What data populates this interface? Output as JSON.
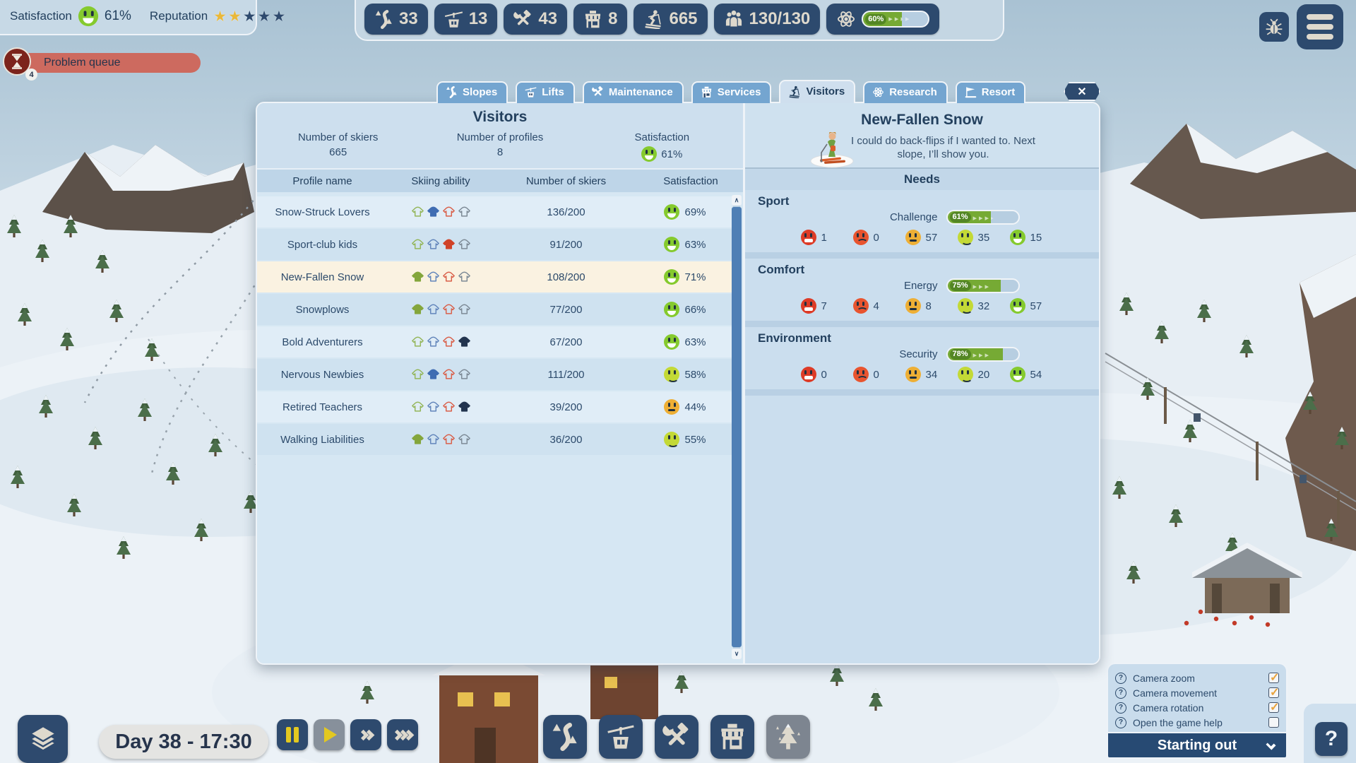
{
  "top_bar": {
    "satisfaction_label": "Satisfaction",
    "satisfaction_value": "61%",
    "satisfaction_mood": "happy",
    "reputation_label": "Reputation",
    "stars": [
      "filled",
      "filled",
      "empty",
      "empty",
      "empty"
    ],
    "resources": [
      {
        "name": "slopes",
        "value": "33"
      },
      {
        "name": "lifts",
        "value": "13"
      },
      {
        "name": "maintenance",
        "value": "43"
      },
      {
        "name": "services",
        "value": "8"
      },
      {
        "name": "skiers",
        "value": "665"
      },
      {
        "name": "guests",
        "value": "130/130"
      },
      {
        "name": "research",
        "value": "60%"
      }
    ]
  },
  "problem_queue": {
    "label": "Problem queue",
    "badge": "4"
  },
  "tabs": [
    {
      "label": "Slopes",
      "active": "false"
    },
    {
      "label": "Lifts",
      "active": "false"
    },
    {
      "label": "Maintenance",
      "active": "false"
    },
    {
      "label": "Services",
      "active": "false"
    },
    {
      "label": "Visitors",
      "active": "true"
    },
    {
      "label": "Research",
      "active": "false"
    },
    {
      "label": "Resort",
      "active": "false"
    }
  ],
  "window": {
    "close_glyph": "✕"
  },
  "visitors": {
    "title": "Visitors",
    "stats": [
      {
        "label": "Number of skiers",
        "value": "665"
      },
      {
        "label": "Number of profiles",
        "value": "8"
      },
      {
        "label": "Satisfaction",
        "value": "61%",
        "mood": "happy"
      }
    ],
    "table": {
      "headers": [
        "Profile name",
        "Skiing ability",
        "Number of skiers",
        "Satisfaction"
      ],
      "rows": [
        {
          "name": "Snow-Struck Lovers",
          "ability": "1",
          "skiers": "136/200",
          "satisfaction": "69%",
          "mood": "happy",
          "selected": "false"
        },
        {
          "name": "Sport-club kids",
          "ability": "2",
          "skiers": "91/200",
          "satisfaction": "63%",
          "mood": "happy",
          "selected": "false"
        },
        {
          "name": "New-Fallen Snow",
          "ability": "0",
          "skiers": "108/200",
          "satisfaction": "71%",
          "mood": "happy",
          "selected": "true"
        },
        {
          "name": "Snowplows",
          "ability": "0",
          "skiers": "77/200",
          "satisfaction": "66%",
          "mood": "happy",
          "selected": "false"
        },
        {
          "name": "Bold Adventurers",
          "ability": "3",
          "skiers": "67/200",
          "satisfaction": "63%",
          "mood": "happy",
          "selected": "false"
        },
        {
          "name": "Nervous Newbies",
          "ability": "1",
          "skiers": "111/200",
          "satisfaction": "58%",
          "mood": "ok",
          "selected": "false"
        },
        {
          "name": "Retired Teachers",
          "ability": "3",
          "skiers": "39/200",
          "satisfaction": "44%",
          "mood": "neutral",
          "selected": "false"
        },
        {
          "name": "Walking Liabilities",
          "ability": "0",
          "skiers": "36/200",
          "satisfaction": "55%",
          "mood": "ok",
          "selected": "false"
        }
      ]
    }
  },
  "detail": {
    "title": "New-Fallen Snow",
    "quote": "I could do back-flips if I wanted to. Next slope, I’ll show you.",
    "needs_title": "Needs",
    "sections": [
      {
        "title": "Sport",
        "metric": "Challenge",
        "progress": "61%",
        "counts": [
          {
            "mood": "angry",
            "value": "1"
          },
          {
            "mood": "sad",
            "value": "0"
          },
          {
            "mood": "neutral",
            "value": "57"
          },
          {
            "mood": "ok",
            "value": "35"
          },
          {
            "mood": "happy",
            "value": "15"
          }
        ]
      },
      {
        "title": "Comfort",
        "metric": "Energy",
        "progress": "75%",
        "counts": [
          {
            "mood": "angry",
            "value": "7"
          },
          {
            "mood": "sad",
            "value": "4"
          },
          {
            "mood": "neutral",
            "value": "8"
          },
          {
            "mood": "ok",
            "value": "32"
          },
          {
            "mood": "happy",
            "value": "57"
          }
        ]
      },
      {
        "title": "Environment",
        "metric": "Security",
        "progress": "78%",
        "counts": [
          {
            "mood": "angry",
            "value": "0"
          },
          {
            "mood": "sad",
            "value": "0"
          },
          {
            "mood": "neutral",
            "value": "34"
          },
          {
            "mood": "ok",
            "value": "20"
          },
          {
            "mood": "happy",
            "value": "54"
          }
        ]
      }
    ]
  },
  "bottom": {
    "time": "Day 38 - 17:30"
  },
  "tutorial": {
    "q_glyph": "?",
    "items": [
      {
        "label": "Camera zoom",
        "checked": "true"
      },
      {
        "label": "Camera movement",
        "checked": "true"
      },
      {
        "label": "Camera rotation",
        "checked": "true"
      },
      {
        "label": "Open the game help",
        "checked": "false"
      }
    ],
    "footer": "Starting out"
  },
  "help": {
    "label": "?"
  }
}
